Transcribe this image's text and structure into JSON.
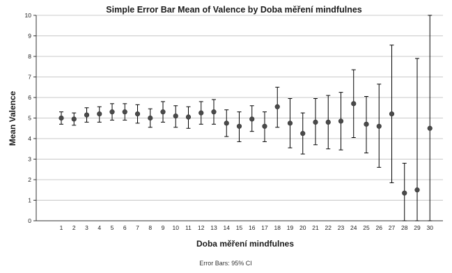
{
  "chart_data": {
    "type": "scatter",
    "title": "Simple Error Bar Mean of Valence by Doba měření mindfulnes",
    "xlabel": "Doba měření mindfulnes",
    "ylabel": "Mean Valence",
    "footnote": "Error Bars: 95% CI",
    "ylim": [
      0,
      10
    ],
    "y_ticks": [
      0,
      1,
      2,
      3,
      4,
      5,
      6,
      7,
      8,
      9,
      10
    ],
    "grid": "horizontal",
    "categories": [
      "1",
      "2",
      "3",
      "4",
      "5",
      "6",
      "7",
      "8",
      "9",
      "10",
      "11",
      "12",
      "13",
      "14",
      "15",
      "16",
      "17",
      "18",
      "19",
      "20",
      "21",
      "22",
      "23",
      "24",
      "25",
      "26",
      "27",
      "28",
      "29",
      "30"
    ],
    "means": [
      5.0,
      4.95,
      5.15,
      5.2,
      5.3,
      5.3,
      5.2,
      5.0,
      5.3,
      5.1,
      5.05,
      5.25,
      5.3,
      4.75,
      4.6,
      4.95,
      4.6,
      5.55,
      4.75,
      4.25,
      4.8,
      4.8,
      4.85,
      5.7,
      4.7,
      4.6,
      5.2,
      1.35,
      1.5,
      4.5
    ],
    "ci_lower": [
      4.7,
      4.65,
      4.8,
      4.8,
      4.9,
      4.9,
      4.75,
      4.55,
      4.8,
      4.55,
      4.5,
      4.7,
      4.7,
      4.1,
      3.85,
      4.35,
      3.85,
      4.55,
      3.55,
      3.25,
      3.7,
      3.5,
      3.45,
      4.05,
      3.3,
      2.6,
      1.85,
      0.0,
      0.0,
      0.0
    ],
    "ci_upper": [
      5.3,
      5.25,
      5.5,
      5.55,
      5.7,
      5.7,
      5.65,
      5.45,
      5.8,
      5.6,
      5.55,
      5.8,
      5.9,
      5.4,
      5.3,
      5.6,
      5.3,
      6.5,
      5.95,
      5.25,
      5.95,
      6.1,
      6.25,
      7.35,
      6.05,
      6.65,
      8.55,
      2.8,
      7.9,
      10.0
    ],
    "colors": {
      "marker": "#4a4a4a",
      "errorbar": "#000000",
      "grid": "#c8c8c8",
      "axis": "#333333"
    }
  }
}
